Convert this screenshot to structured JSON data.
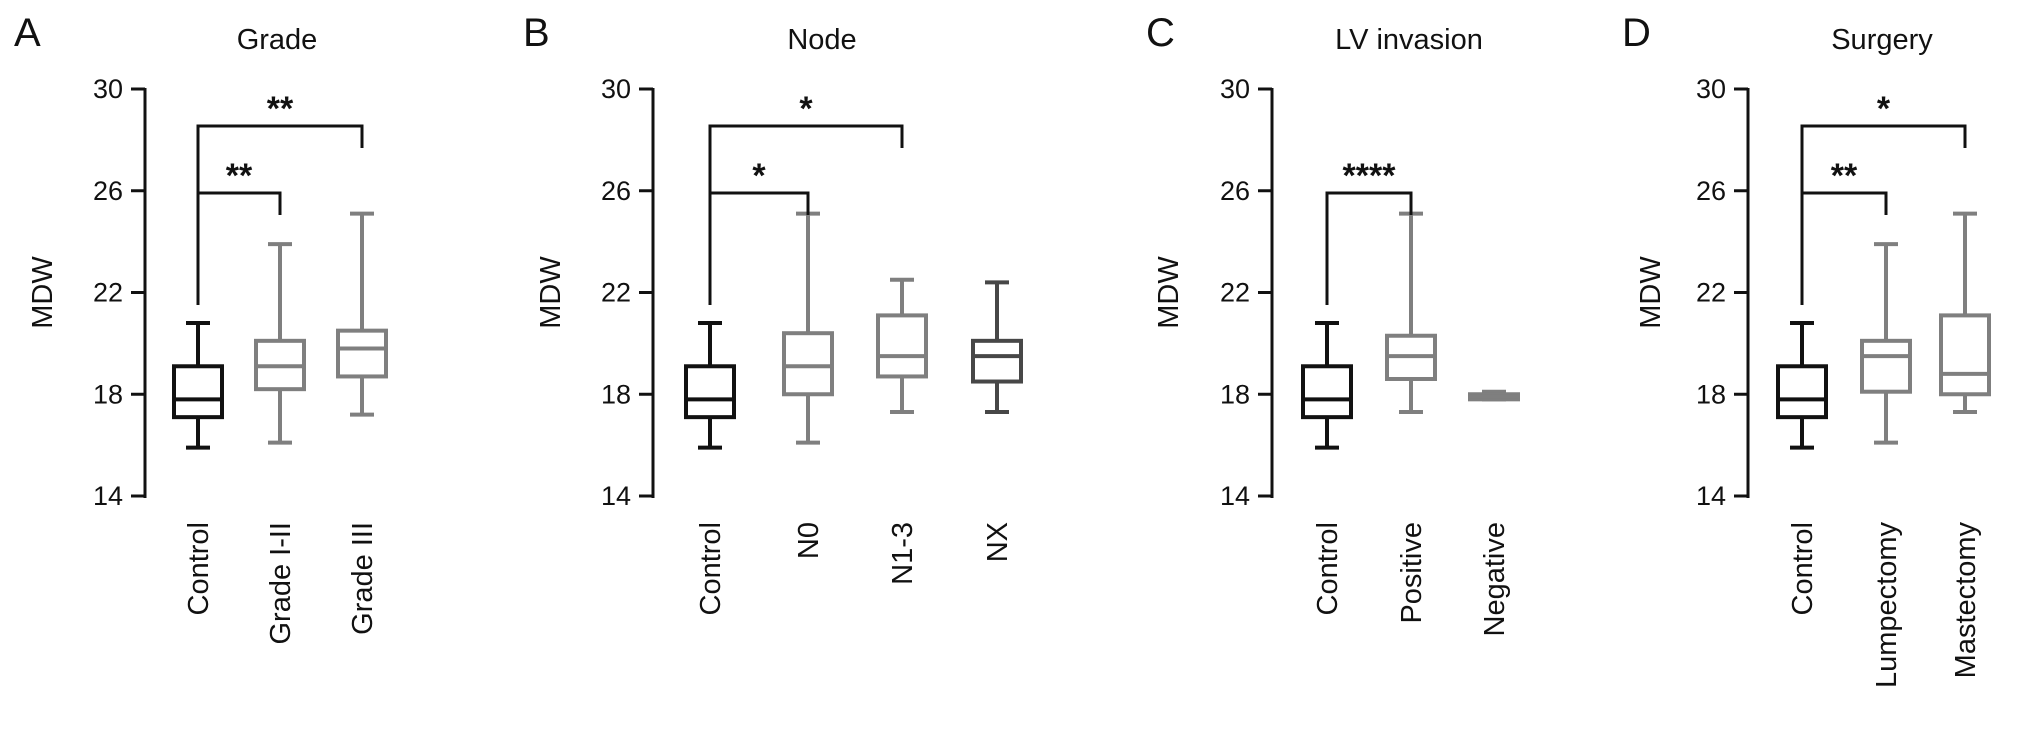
{
  "colors": {
    "control": "#111111",
    "group": "#7f7f7f",
    "dark": "#474747",
    "axis": "#111111"
  },
  "chart_data": [
    {
      "panel": "A",
      "type": "box",
      "title": "Grade",
      "ylabel": "MDW",
      "ylim": [
        14,
        30
      ],
      "yticks": [
        "14",
        "18",
        "22",
        "26",
        "30"
      ],
      "categories": [
        "Control",
        "Grade I-II",
        "Grade III"
      ],
      "boxes": [
        {
          "min": 15.9,
          "q1": 17.1,
          "median": 17.8,
          "q3": 19.1,
          "max": 20.8,
          "color": "#111111"
        },
        {
          "min": 16.1,
          "q1": 18.2,
          "median": 19.1,
          "q3": 20.1,
          "max": 23.9,
          "color": "#7f7f7f"
        },
        {
          "min": 17.2,
          "q1": 18.7,
          "median": 19.8,
          "q3": 20.5,
          "max": 25.1,
          "color": "#7f7f7f"
        }
      ],
      "comparisons": [
        {
          "from": 0,
          "to": 1,
          "label": "**"
        },
        {
          "from": 0,
          "to": 2,
          "label": "**"
        }
      ]
    },
    {
      "panel": "B",
      "type": "box",
      "title": "Node",
      "ylabel": "MDW",
      "ylim": [
        14,
        30
      ],
      "yticks": [
        "14",
        "18",
        "22",
        "26",
        "30"
      ],
      "categories": [
        "Control",
        "N0",
        "N1-3",
        "NX"
      ],
      "boxes": [
        {
          "min": 15.9,
          "q1": 17.1,
          "median": 17.8,
          "q3": 19.1,
          "max": 20.8,
          "color": "#111111"
        },
        {
          "min": 16.1,
          "q1": 18.0,
          "median": 19.1,
          "q3": 20.4,
          "max": 25.1,
          "color": "#7f7f7f"
        },
        {
          "min": 17.3,
          "q1": 18.7,
          "median": 19.5,
          "q3": 21.1,
          "max": 22.5,
          "color": "#7f7f7f"
        },
        {
          "min": 17.3,
          "q1": 18.5,
          "median": 19.5,
          "q3": 20.1,
          "max": 22.4,
          "color": "#474747"
        }
      ],
      "comparisons": [
        {
          "from": 0,
          "to": 1,
          "label": "*"
        },
        {
          "from": 0,
          "to": 2,
          "label": "*"
        }
      ]
    },
    {
      "panel": "C",
      "type": "box",
      "title": "LV invasion",
      "ylabel": "MDW",
      "ylim": [
        14,
        30
      ],
      "yticks": [
        "14",
        "18",
        "22",
        "26",
        "30"
      ],
      "categories": [
        "Control",
        "Positive",
        "Negative"
      ],
      "boxes": [
        {
          "min": 15.9,
          "q1": 17.1,
          "median": 17.8,
          "q3": 19.1,
          "max": 20.8,
          "color": "#111111"
        },
        {
          "min": 17.3,
          "q1": 18.6,
          "median": 19.5,
          "q3": 20.3,
          "max": 25.1,
          "color": "#7f7f7f"
        },
        {
          "min": 17.8,
          "q1": 17.8,
          "median": 17.9,
          "q3": 18.0,
          "max": 18.1,
          "color": "#7f7f7f"
        }
      ],
      "comparisons": [
        {
          "from": 0,
          "to": 1,
          "label": "****"
        }
      ]
    },
    {
      "panel": "D",
      "type": "box",
      "title": "Surgery",
      "ylabel": "MDW",
      "ylim": [
        14,
        30
      ],
      "yticks": [
        "14",
        "18",
        "22",
        "26",
        "30"
      ],
      "categories": [
        "Control",
        "Lumpectomy",
        "Mastectomy"
      ],
      "boxes": [
        {
          "min": 15.9,
          "q1": 17.1,
          "median": 17.8,
          "q3": 19.1,
          "max": 20.8,
          "color": "#111111"
        },
        {
          "min": 16.1,
          "q1": 18.1,
          "median": 19.5,
          "q3": 20.1,
          "max": 23.9,
          "color": "#7f7f7f"
        },
        {
          "min": 17.3,
          "q1": 18.0,
          "median": 18.8,
          "q3": 21.1,
          "max": 25.1,
          "color": "#7f7f7f"
        }
      ],
      "comparisons": [
        {
          "from": 0,
          "to": 1,
          "label": "**"
        },
        {
          "from": 0,
          "to": 2,
          "label": "*"
        }
      ]
    }
  ]
}
